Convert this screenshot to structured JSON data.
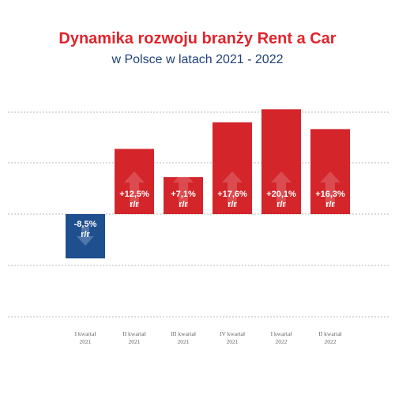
{
  "title": "Dynamika rozwoju branży Rent a Car",
  "subtitle": "w Polsce w latach 2021 - 2022",
  "colors": {
    "title": "#e0242c",
    "subtitle": "#1f3f7a",
    "positive_bar": "#d3252a",
    "negative_bar": "#1f4f8f",
    "grid": "#b8b8b8"
  },
  "chart_data": {
    "type": "bar",
    "categories": [
      [
        "I kwartał",
        "2021"
      ],
      [
        "II kwartał",
        "2021"
      ],
      [
        "III kwartał",
        "2021"
      ],
      [
        "IV kwartał",
        "2021"
      ],
      [
        "I kwartał",
        "2022"
      ],
      [
        "II kwartał",
        "2022"
      ]
    ],
    "values": [
      -8.5,
      12.5,
      7.1,
      17.6,
      20.1,
      16.3
    ],
    "value_labels": [
      "-8,5%",
      "+12,5%",
      "+7,1%",
      "+17,6%",
      "+20,1%",
      "+16,3%"
    ],
    "unit_label": "r/r",
    "ylim": [
      -20,
      20
    ],
    "grid": true,
    "grid_style": "dashed",
    "title": "Dynamika rozwoju branży Rent a Car",
    "xlabel": "",
    "ylabel": ""
  }
}
